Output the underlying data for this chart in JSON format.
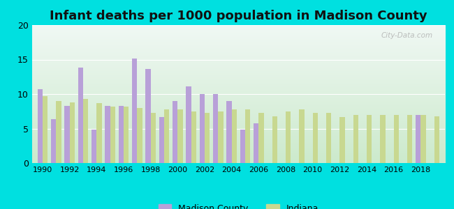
{
  "title": "Infant deaths per 1000 population in Madison County",
  "years": [
    1990,
    1991,
    1992,
    1993,
    1994,
    1995,
    1996,
    1997,
    1998,
    1999,
    2000,
    2001,
    2002,
    2003,
    2004,
    2005,
    2006,
    2007,
    2008,
    2009,
    2010,
    2011,
    2012,
    2013,
    2014,
    2015,
    2016,
    2017,
    2018,
    2019
  ],
  "madison_county": [
    10.7,
    6.4,
    8.3,
    13.8,
    4.8,
    8.3,
    8.3,
    15.2,
    13.6,
    6.7,
    9.0,
    11.1,
    10.0,
    10.0,
    9.0,
    4.8,
    5.8,
    0.0,
    0.0,
    0.0,
    0.0,
    0.0,
    0.0,
    0.0,
    0.0,
    0.0,
    0.0,
    0.0,
    7.0,
    0.0
  ],
  "indiana": [
    9.7,
    9.0,
    8.8,
    9.3,
    8.7,
    8.2,
    8.2,
    8.0,
    7.3,
    7.8,
    7.8,
    7.5,
    7.3,
    7.5,
    7.8,
    7.8,
    7.3,
    6.8,
    7.5,
    7.8,
    7.3,
    7.3,
    6.7,
    7.0,
    7.0,
    7.0,
    7.0,
    7.0,
    7.0,
    6.8
  ],
  "madison_color": "#b8a0d8",
  "indiana_color": "#c8d890",
  "bg_outer": "#00e0e0",
  "bg_top": "#f0f8f4",
  "bg_bottom": "#cceacc",
  "ylim": [
    0,
    20
  ],
  "yticks": [
    0,
    5,
    10,
    15,
    20
  ],
  "bar_width": 0.38,
  "title_fontsize": 13,
  "watermark": "City-Data.com"
}
